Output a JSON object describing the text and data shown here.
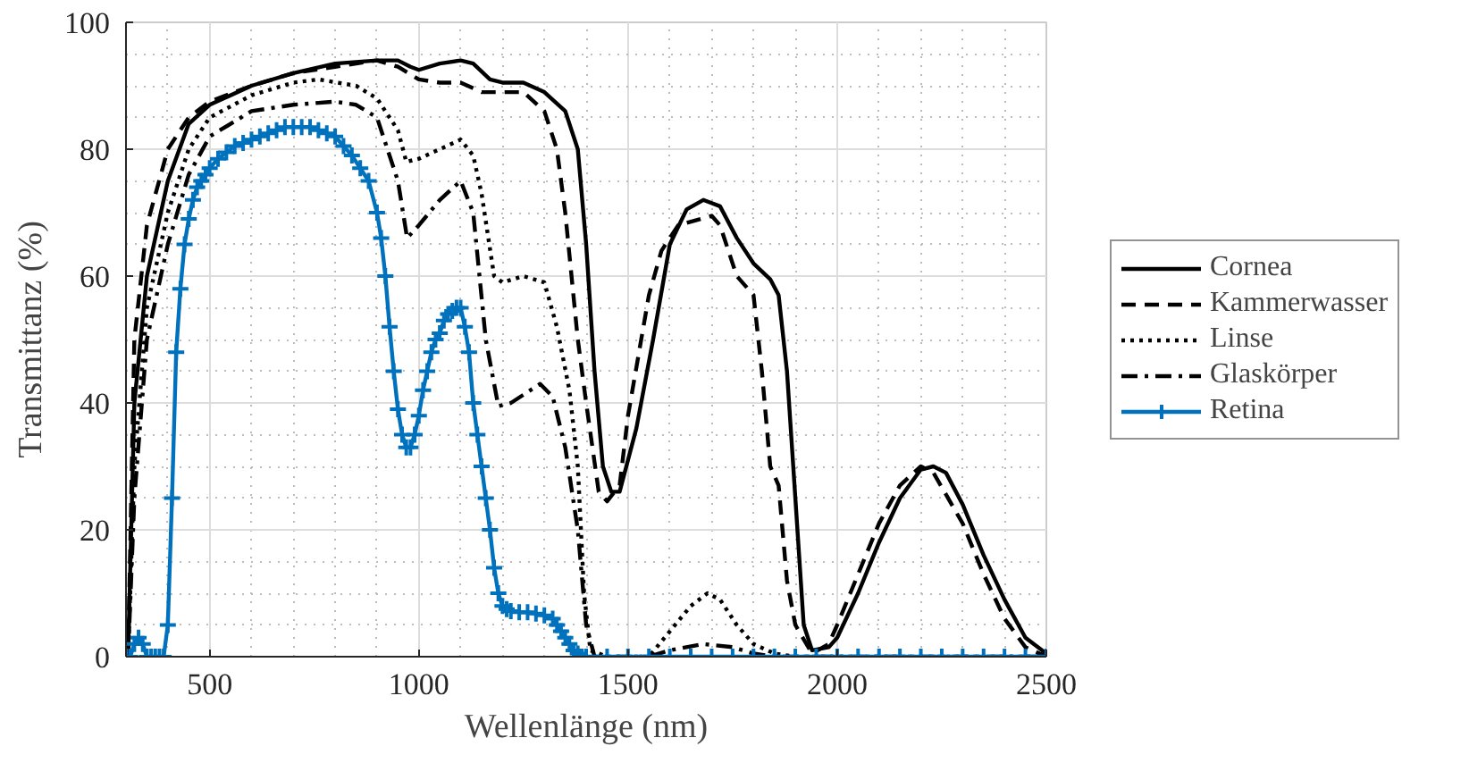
{
  "chart_data": {
    "type": "line",
    "xlabel": "Wellenlänge (nm)",
    "ylabel": "Transmittanz (%)",
    "xlim": [
      300,
      2500
    ],
    "ylim": [
      0,
      100
    ],
    "xticks": [
      500,
      1000,
      1500,
      2000,
      2500
    ],
    "yticks": [
      0,
      20,
      40,
      60,
      80,
      100
    ],
    "grid": true,
    "legend": "right",
    "series": [
      {
        "name": "Cornea",
        "color": "#000000",
        "line_style": "solid",
        "marker": "none",
        "x": [
          305,
          320,
          350,
          400,
          450,
          500,
          600,
          700,
          800,
          900,
          950,
          980,
          1000,
          1050,
          1100,
          1130,
          1170,
          1200,
          1250,
          1300,
          1350,
          1380,
          1400,
          1420,
          1440,
          1460,
          1480,
          1520,
          1560,
          1600,
          1640,
          1680,
          1720,
          1760,
          1800,
          1840,
          1860,
          1880,
          1900,
          1920,
          1940,
          1980,
          2000,
          2050,
          2100,
          2150,
          2200,
          2230,
          2260,
          2300,
          2350,
          2400,
          2450,
          2500
        ],
        "values": [
          0,
          40,
          60,
          75,
          84,
          87,
          90,
          92,
          93.5,
          94,
          94,
          93,
          92.5,
          93.5,
          94,
          93.5,
          91,
          90.5,
          90.5,
          89,
          86,
          80,
          65,
          45,
          30,
          26,
          26,
          36,
          50,
          65,
          70.5,
          72,
          71,
          66,
          62,
          59.5,
          57,
          45,
          25,
          5,
          1,
          1.5,
          3,
          10,
          18,
          25,
          29.5,
          30,
          29,
          24,
          16,
          9,
          3,
          0.5
        ]
      },
      {
        "name": "Kammerwasser",
        "color": "#000000",
        "line_style": "dashed",
        "marker": "none",
        "x": [
          305,
          320,
          350,
          400,
          450,
          500,
          600,
          700,
          800,
          900,
          950,
          1000,
          1050,
          1100,
          1150,
          1200,
          1250,
          1300,
          1330,
          1350,
          1380,
          1400,
          1430,
          1450,
          1480,
          1500,
          1550,
          1580,
          1620,
          1700,
          1720,
          1760,
          1800,
          1820,
          1840,
          1860,
          1880,
          1900,
          1940,
          1980,
          2000,
          2050,
          2100,
          2150,
          2200,
          2230,
          2300,
          2350,
          2400,
          2450,
          2500
        ],
        "values": [
          0,
          50,
          68,
          80,
          85,
          87.5,
          90,
          92,
          93,
          94,
          93,
          91,
          90.5,
          90.5,
          89,
          89,
          89,
          86,
          80,
          70,
          50,
          40,
          26,
          24.5,
          27,
          38,
          57,
          64,
          68,
          69.5,
          68,
          60,
          57,
          45,
          30,
          27,
          12,
          5,
          0.5,
          2,
          5,
          13,
          21,
          27,
          30,
          29,
          21,
          13,
          6,
          1.5,
          0
        ]
      },
      {
        "name": "Linse",
        "color": "#000000",
        "line_style": "dotted",
        "marker": "none",
        "x": [
          305,
          320,
          350,
          400,
          450,
          500,
          600,
          700,
          760,
          850,
          900,
          950,
          970,
          1000,
          1050,
          1100,
          1130,
          1150,
          1180,
          1200,
          1250,
          1300,
          1330,
          1360,
          1380,
          1395,
          1410,
          1450,
          1550,
          1600,
          1650,
          1690,
          1720,
          1760,
          1800,
          1850,
          1900,
          2500
        ],
        "values": [
          0,
          30,
          55,
          70,
          80,
          85,
          88.5,
          90.5,
          91,
          90,
          88,
          83,
          78,
          78.5,
          80,
          81.5,
          79,
          73,
          60,
          59,
          60,
          59,
          52,
          42,
          30,
          10,
          1,
          0,
          0,
          4,
          8,
          10,
          9,
          5,
          2,
          0.5,
          0,
          0
        ]
      },
      {
        "name": "Glaskörper",
        "color": "#000000",
        "line_style": "dashdot",
        "marker": "none",
        "x": [
          305,
          320,
          350,
          400,
          450,
          500,
          600,
          700,
          800,
          850,
          900,
          950,
          972,
          1000,
          1050,
          1100,
          1130,
          1160,
          1190,
          1220,
          1290,
          1320,
          1350,
          1380,
          1400,
          1420,
          1550,
          1600,
          1680,
          1750,
          1800,
          1850,
          2500
        ],
        "values": [
          0,
          25,
          50,
          65,
          76,
          82,
          86,
          87,
          87.5,
          87,
          85,
          75,
          66,
          68,
          72,
          75,
          70,
          50,
          39.5,
          40,
          43,
          41,
          33,
          20,
          5,
          0,
          0,
          1,
          2,
          1.5,
          0.5,
          0,
          0
        ]
      },
      {
        "name": "Retina",
        "color": "#0072bd",
        "line_style": "solid",
        "marker": "cross",
        "x": [
          300,
          310,
          320,
          330,
          340,
          350,
          360,
          370,
          380,
          390,
          400,
          410,
          420,
          430,
          440,
          450,
          460,
          470,
          480,
          490,
          500,
          520,
          540,
          560,
          580,
          600,
          620,
          640,
          660,
          680,
          700,
          720,
          740,
          760,
          780,
          800,
          820,
          840,
          860,
          880,
          900,
          910,
          920,
          930,
          940,
          950,
          960,
          970,
          980,
          990,
          1000,
          1010,
          1020,
          1030,
          1040,
          1050,
          1060,
          1070,
          1080,
          1090,
          1100,
          1110,
          1120,
          1130,
          1140,
          1150,
          1160,
          1170,
          1180,
          1190,
          1200,
          1210,
          1220,
          1240,
          1260,
          1280,
          1300,
          1320,
          1330,
          1340,
          1350,
          1360,
          1370,
          1380,
          1390,
          1400,
          1450,
          1500,
          1550,
          1600,
          1650,
          1700,
          1750,
          1800,
          1850,
          1900,
          1950,
          2000,
          2050,
          2100,
          2150,
          2200,
          2250,
          2300,
          2350,
          2400,
          2450,
          2500
        ],
        "values": [
          0,
          0,
          2,
          3,
          2,
          0,
          0,
          0,
          0,
          0,
          5,
          25,
          48,
          58,
          65,
          69,
          72,
          74,
          75,
          76,
          77,
          78.5,
          79.5,
          80.5,
          81,
          81.5,
          82,
          82.5,
          83,
          83.5,
          83.5,
          83.5,
          83.5,
          83,
          82.5,
          82,
          80.5,
          79,
          77,
          75,
          70,
          66,
          60,
          52,
          45,
          39,
          35,
          33,
          33,
          35,
          38,
          42,
          45,
          48,
          50,
          51,
          53,
          54,
          54.5,
          55,
          55,
          52,
          48,
          40,
          35,
          30,
          25,
          20,
          14,
          10,
          8,
          7.5,
          7.2,
          7,
          7,
          6.8,
          6.5,
          6,
          5,
          4,
          3,
          2,
          1,
          0.5,
          0,
          0,
          0,
          0,
          0,
          0,
          0,
          0,
          0,
          0,
          0,
          0,
          0,
          0,
          0,
          0,
          0,
          0,
          0,
          0,
          0,
          0,
          0,
          0
        ]
      }
    ]
  }
}
